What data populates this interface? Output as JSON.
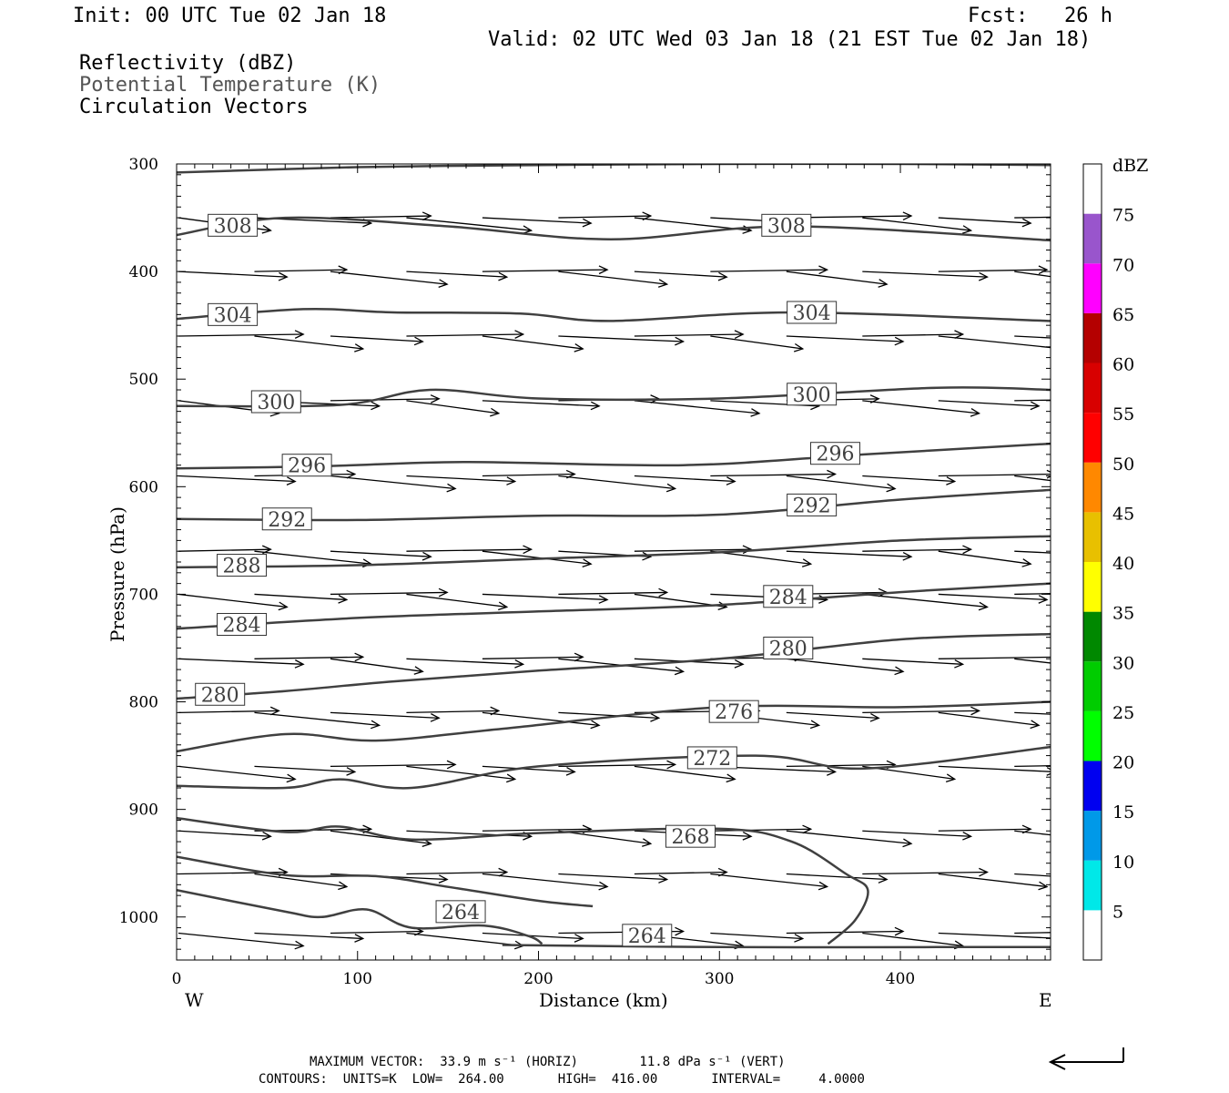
{
  "header": {
    "init": "Init: 00 UTC Tue 02 Jan 18",
    "fcst": "Fcst:   26 h",
    "valid": "Valid: 02 UTC Wed 03 Jan 18 (21 EST Tue 02 Jan 18)",
    "fields": [
      "Reflectivity (dBZ)",
      "Potential Temperature (K)",
      "Circulation Vectors"
    ]
  },
  "footer": {
    "max_vector": "MAXIMUM VECTOR:  33.9 m s⁻¹ (HORIZ)        11.8 dPa s⁻¹ (VERT)",
    "contours": "CONTOURS:  UNITS=K  LOW=  264.00       HIGH=  416.00       INTERVAL=     4.0000"
  },
  "colors": {
    "contour": "#404040",
    "colorbar": [
      "#ffffff",
      "#00e8e8",
      "#0099e8",
      "#0000f0",
      "#00ff00",
      "#00cc00",
      "#008800",
      "#ffff00",
      "#e8c000",
      "#ff8800",
      "#ff0000",
      "#d80000",
      "#b40000",
      "#ff00ff",
      "#9955cc",
      "#ffffff"
    ]
  },
  "chart_data": {
    "type": "cross-section",
    "xlabel": "Distance (km)",
    "ylabel": "Pressure (hPa)",
    "xlim": [
      0,
      483
    ],
    "ylim": [
      1040,
      300
    ],
    "x_ticks": [
      0,
      100,
      200,
      300,
      400
    ],
    "y_ticks": [
      300,
      400,
      500,
      600,
      700,
      800,
      900,
      1000
    ],
    "x_left_label": "W",
    "x_right_label": "E",
    "colorbar": {
      "title": "dBZ",
      "labels": [
        5,
        10,
        15,
        20,
        25,
        30,
        35,
        40,
        45,
        50,
        55,
        60,
        65,
        70,
        75
      ]
    },
    "contours": [
      {
        "value": 308,
        "points": [
          [
            0,
            308
          ],
          [
            100,
            303
          ],
          [
            200,
            301
          ],
          [
            300,
            300
          ],
          [
            400,
            300
          ],
          [
            483,
            301
          ]
        ]
      },
      {
        "value": 308,
        "points": [
          [
            0,
            366
          ],
          [
            60,
            350
          ],
          [
            150,
            358
          ],
          [
            240,
            370
          ],
          [
            340,
            358
          ],
          [
            483,
            371
          ]
        ]
      },
      {
        "value": 304,
        "points": [
          [
            0,
            444
          ],
          [
            70,
            435
          ],
          [
            120,
            438
          ],
          [
            190,
            439
          ],
          [
            240,
            446
          ],
          [
            340,
            438
          ],
          [
            483,
            446
          ]
        ]
      },
      {
        "value": 300,
        "points": [
          [
            0,
            525
          ],
          [
            90,
            524
          ],
          [
            140,
            510
          ],
          [
            200,
            518
          ],
          [
            300,
            518
          ],
          [
            420,
            508
          ],
          [
            483,
            510
          ]
        ]
      },
      {
        "value": 296,
        "points": [
          [
            0,
            583
          ],
          [
            80,
            581
          ],
          [
            160,
            577
          ],
          [
            280,
            580
          ],
          [
            380,
            570
          ],
          [
            483,
            560
          ]
        ]
      },
      {
        "value": 292,
        "points": [
          [
            0,
            630
          ],
          [
            100,
            631
          ],
          [
            200,
            627
          ],
          [
            300,
            626
          ],
          [
            400,
            612
          ],
          [
            483,
            603
          ]
        ]
      },
      {
        "value": 288,
        "points": [
          [
            0,
            675
          ],
          [
            100,
            673
          ],
          [
            200,
            667
          ],
          [
            300,
            661
          ],
          [
            400,
            650
          ],
          [
            483,
            646
          ]
        ]
      },
      {
        "value": 284,
        "points": [
          [
            0,
            732
          ],
          [
            100,
            722
          ],
          [
            200,
            716
          ],
          [
            300,
            710
          ],
          [
            400,
            698
          ],
          [
            483,
            690
          ]
        ]
      },
      {
        "value": 280,
        "points": [
          [
            0,
            797
          ],
          [
            60,
            790
          ],
          [
            120,
            781
          ],
          [
            200,
            771
          ],
          [
            300,
            760
          ],
          [
            400,
            742
          ],
          [
            483,
            737
          ]
        ]
      },
      {
        "value": 276,
        "points": [
          [
            0,
            846
          ],
          [
            60,
            830
          ],
          [
            110,
            836
          ],
          [
            180,
            825
          ],
          [
            300,
            805
          ],
          [
            400,
            805
          ],
          [
            483,
            800
          ]
        ]
      },
      {
        "value": 272,
        "points": [
          [
            0,
            878
          ],
          [
            60,
            880
          ],
          [
            90,
            872
          ],
          [
            130,
            880
          ],
          [
            200,
            860
          ],
          [
            320,
            850
          ],
          [
            380,
            862
          ],
          [
            483,
            842
          ]
        ]
      },
      {
        "value": 268,
        "points": [
          [
            0,
            908
          ],
          [
            60,
            921
          ],
          [
            90,
            916
          ],
          [
            130,
            928
          ],
          [
            200,
            922
          ],
          [
            300,
            918
          ],
          [
            340,
            930
          ],
          [
            370,
            960
          ],
          [
            382,
            975
          ],
          [
            375,
            1003
          ],
          [
            360,
            1025
          ]
        ]
      },
      {
        "value": 268,
        "points": [
          [
            0,
            944
          ],
          [
            60,
            961
          ],
          [
            110,
            962
          ],
          [
            150,
            972
          ],
          [
            200,
            985
          ],
          [
            230,
            990
          ]
        ]
      },
      {
        "value": 264,
        "points": [
          [
            0,
            975
          ],
          [
            60,
            995
          ],
          [
            80,
            1000
          ],
          [
            105,
            993
          ],
          [
            130,
            1010
          ],
          [
            170,
            1008
          ],
          [
            195,
            1018
          ],
          [
            202,
            1025
          ]
        ]
      },
      {
        "value": 264,
        "points": [
          [
            180,
            1026
          ],
          [
            300,
            1028
          ],
          [
            420,
            1028
          ],
          [
            483,
            1028
          ]
        ]
      }
    ],
    "contour_labels": [
      {
        "text": "308",
        "x": 31,
        "p": 357
      },
      {
        "text": "308",
        "x": 337,
        "p": 357
      },
      {
        "text": "304",
        "x": 31,
        "p": 440
      },
      {
        "text": "304",
        "x": 351,
        "p": 438
      },
      {
        "text": "300",
        "x": 55,
        "p": 521
      },
      {
        "text": "300",
        "x": 351,
        "p": 514
      },
      {
        "text": "296",
        "x": 72,
        "p": 580
      },
      {
        "text": "296",
        "x": 364,
        "p": 569
      },
      {
        "text": "292",
        "x": 61,
        "p": 630
      },
      {
        "text": "292",
        "x": 351,
        "p": 617
      },
      {
        "text": "288",
        "x": 36,
        "p": 673
      },
      {
        "text": "284",
        "x": 36,
        "p": 728
      },
      {
        "text": "284",
        "x": 338,
        "p": 702
      },
      {
        "text": "280",
        "x": 24,
        "p": 793
      },
      {
        "text": "280",
        "x": 338,
        "p": 750
      },
      {
        "text": "276",
        "x": 308,
        "p": 809
      },
      {
        "text": "272",
        "x": 296,
        "p": 852
      },
      {
        "text": "268",
        "x": 284,
        "p": 925
      },
      {
        "text": "264",
        "x": 157,
        "p": 995
      },
      {
        "text": "264",
        "x": 260,
        "p": 1017
      }
    ],
    "vectors": {
      "columns_km": [
        0,
        42,
        84,
        126,
        168,
        210,
        252,
        294,
        336,
        378,
        420,
        462
      ],
      "levels_hpa": [
        350,
        400,
        460,
        520,
        590,
        660,
        700,
        760,
        810,
        860,
        920,
        960,
        1015
      ],
      "typical_u": 40,
      "typical_v": -3
    }
  }
}
